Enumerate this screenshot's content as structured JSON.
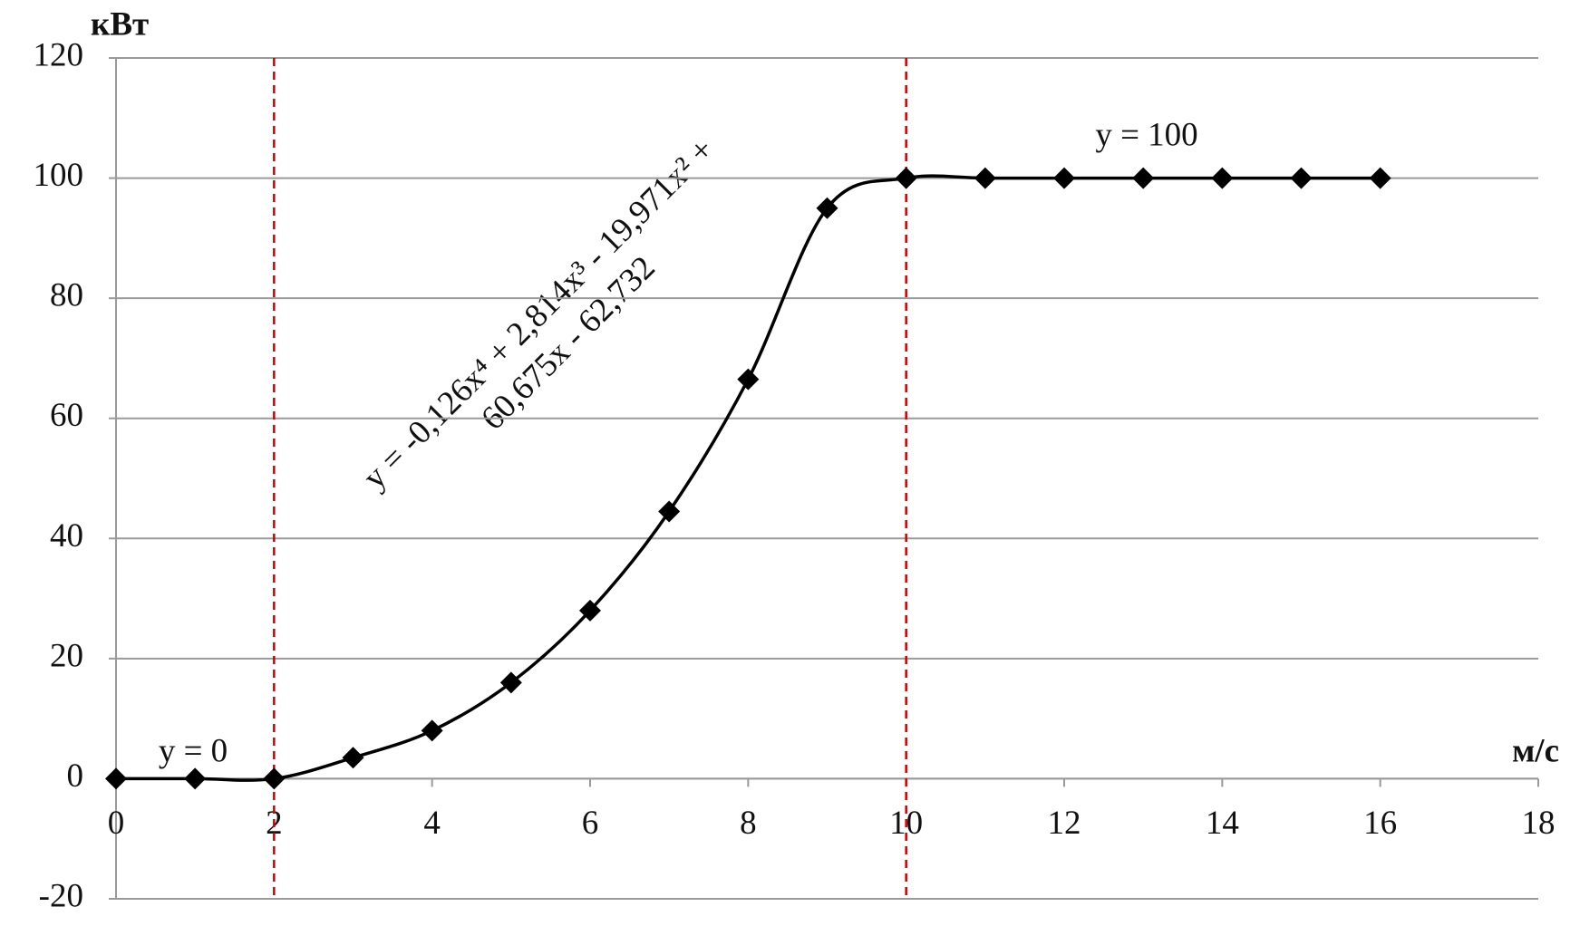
{
  "chart_data": {
    "type": "scatter",
    "y_unit": "кВт",
    "x_unit": "м/с",
    "x": [
      0,
      1,
      2,
      3,
      4,
      5,
      6,
      7,
      8,
      9,
      10,
      11,
      12,
      13,
      14,
      15,
      16
    ],
    "series": [
      {
        "color": "#000000",
        "values": [
          0,
          0,
          0,
          3.5,
          8,
          16,
          28,
          44.5,
          66.5,
          95,
          100,
          100,
          100,
          100,
          100,
          100,
          100
        ]
      }
    ],
    "xlim": [
      0,
      18
    ],
    "xticks": [
      0,
      2,
      4,
      6,
      8,
      10,
      12,
      14,
      16,
      18
    ],
    "ylim": [
      -20,
      120
    ],
    "yticks": [
      -20,
      0,
      20,
      40,
      60,
      80,
      100,
      120
    ],
    "grid": true,
    "reference_lines": {
      "x": [
        2,
        10
      ],
      "color": "#d00000"
    },
    "annotations": [
      "y = 0",
      "y = 100",
      "y = -0,126x⁴ + 2,814x³ - 19,971x² +",
      "60,675x - 62,732"
    ]
  }
}
